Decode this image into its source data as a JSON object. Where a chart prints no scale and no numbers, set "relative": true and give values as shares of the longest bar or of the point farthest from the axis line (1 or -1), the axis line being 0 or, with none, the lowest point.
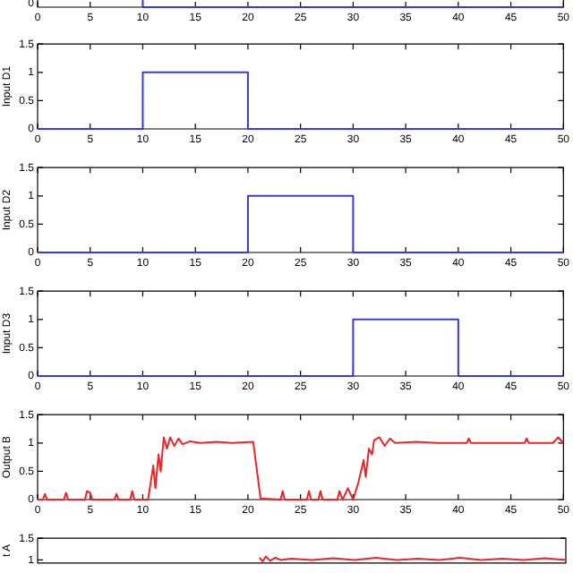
{
  "chart_data": [
    {
      "type": "line",
      "relative": true,
      "tick_labels": "x",
      "annotations": [
        "0"
      ],
      "x": [
        0,
        10,
        10,
        50
      ],
      "values": [
        1,
        1,
        0,
        0
      ],
      "color": "#3a3ad8",
      "xlim": [
        0,
        50
      ],
      "xticks": [
        0,
        5,
        10,
        15,
        20,
        25,
        30,
        35,
        40,
        45,
        50
      ]
    },
    {
      "type": "line",
      "ylabel": "Input D1",
      "x": [
        0,
        10,
        10,
        20,
        20,
        50
      ],
      "values": [
        0,
        0,
        1,
        1,
        0,
        0
      ],
      "color": "#3a3ad8",
      "xlim": [
        0,
        50
      ],
      "ylim": [
        0,
        1.5
      ],
      "xticks": [
        0,
        5,
        10,
        15,
        20,
        25,
        30,
        35,
        40,
        45,
        50
      ],
      "yticks": [
        0,
        0.5,
        1,
        1.5
      ]
    },
    {
      "type": "line",
      "ylabel": "Input D2",
      "x": [
        0,
        20,
        20,
        30,
        30,
        50
      ],
      "values": [
        0,
        0,
        1,
        1,
        0,
        0
      ],
      "color": "#3a3ad8",
      "xlim": [
        0,
        50
      ],
      "ylim": [
        0,
        1.5
      ],
      "xticks": [
        0,
        5,
        10,
        15,
        20,
        25,
        30,
        35,
        40,
        45,
        50
      ],
      "yticks": [
        0,
        0.5,
        1,
        1.5
      ]
    },
    {
      "type": "line",
      "ylabel": "Input D3",
      "x": [
        0,
        30,
        30,
        40,
        40,
        50
      ],
      "values": [
        0,
        0,
        1,
        1,
        0,
        0
      ],
      "color": "#3a3ad8",
      "xlim": [
        0,
        50
      ],
      "ylim": [
        0,
        1.5
      ],
      "xticks": [
        0,
        5,
        10,
        15,
        20,
        25,
        30,
        35,
        40,
        45,
        50
      ],
      "yticks": [
        0,
        0.5,
        1,
        1.5
      ]
    },
    {
      "type": "line",
      "ylabel": "Output B",
      "x": [
        0,
        0.5,
        0.7,
        0.9,
        2.5,
        2.7,
        2.9,
        4.5,
        4.7,
        5,
        5.2,
        7.3,
        7.5,
        7.7,
        8.8,
        9,
        9.2,
        10.5,
        11,
        11.2,
        11.5,
        11.7,
        12,
        12.3,
        12.6,
        13,
        13.4,
        13.8,
        14.5,
        15.5,
        17,
        18.5,
        20.5,
        21.2,
        23.1,
        23.3,
        23.5,
        25.6,
        25.8,
        26,
        26.7,
        26.9,
        27.1,
        28.5,
        28.7,
        29,
        29.5,
        30,
        30.5,
        31,
        31.2,
        31.5,
        31.8,
        32,
        32.5,
        33,
        33.5,
        34,
        36,
        38,
        40.8,
        41,
        41.2,
        44,
        46.3,
        46.5,
        46.7,
        49,
        49.5,
        50
      ],
      "values": [
        0,
        0,
        0.1,
        0,
        0,
        0.12,
        0,
        0,
        0.15,
        0.12,
        0,
        0,
        0.1,
        0,
        0,
        0.15,
        0,
        0,
        0.6,
        0.2,
        0.8,
        0.5,
        1.1,
        0.9,
        1.1,
        0.95,
        1.08,
        0.98,
        1.03,
        1,
        1.02,
        1,
        1.02,
        0.02,
        0,
        0.15,
        0,
        0,
        0.15,
        0,
        0,
        0.15,
        0,
        0,
        0.15,
        0,
        0.2,
        0,
        0.3,
        0.7,
        0.4,
        0.9,
        0.8,
        1.05,
        1.1,
        0.95,
        1.08,
        1,
        1.02,
        1,
        1,
        1.08,
        1,
        1,
        1,
        1.08,
        1,
        1,
        1.1,
        1
      ],
      "color": "#e8262b",
      "xlim": [
        0,
        50
      ],
      "ylim": [
        0,
        1.5
      ],
      "xticks": [
        0,
        5,
        10,
        15,
        20,
        25,
        30,
        35,
        40,
        45,
        50
      ],
      "yticks": [
        0,
        0.5,
        1,
        1.5
      ]
    },
    {
      "type": "line",
      "ylabel": "t A",
      "tick_labels": "y",
      "x": [
        21,
        21.3,
        21.6,
        22,
        22.5,
        23,
        24,
        26,
        28,
        30,
        32,
        34,
        36,
        38,
        40,
        42,
        44,
        46,
        48,
        50
      ],
      "values": [
        1.05,
        0.97,
        1.08,
        0.98,
        1.05,
        1,
        1.03,
        1,
        1.04,
        1,
        1.05,
        1,
        1.03,
        1,
        1.05,
        1,
        1.03,
        1,
        1.04,
        1
      ],
      "color": "#e8262b",
      "xlim": [
        0,
        50
      ],
      "ylim": [
        0.93,
        1.5
      ],
      "yticks": [
        1,
        1.5
      ]
    }
  ]
}
